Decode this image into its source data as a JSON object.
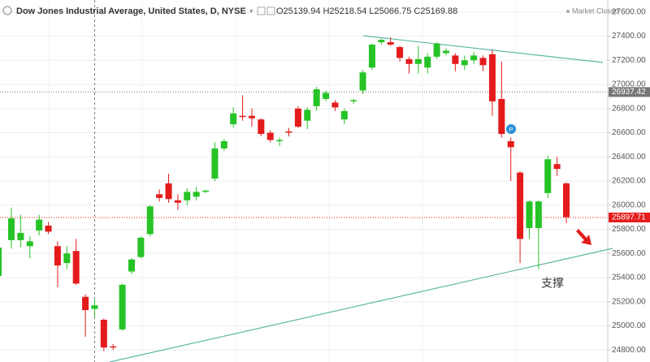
{
  "chart_data": {
    "type": "candlestick",
    "title": "Dow Jones Industrial Average, United States, D, NYSE",
    "ohlc_legend": "O25139.94 H25218.54 L25066.75 C25169.88",
    "status": "Market Closed",
    "annotation": "支撑",
    "up_color": "#26c326",
    "down_color": "#e41b1b",
    "open": [
      25710,
      25710,
      25660,
      25790,
      25830,
      25660,
      25520,
      25620,
      25240,
      25139.94,
      25050,
      24830,
      24970,
      25450,
      25570,
      25760,
      26090,
      26180,
      26040,
      26040,
      26070,
      26110,
      26220,
      26470,
      26670,
      26740,
      26740,
      26710,
      26600,
      26530,
      26610,
      26800,
      26700,
      26820,
      26880,
      26850,
      26710,
      26860,
      26950,
      27140,
      27350,
      27350,
      27310,
      27210,
      27170,
      27140,
      27230,
      27260,
      27240,
      27160,
      27200,
      27220,
      27250,
      26880,
      26530,
      26270,
      25810,
      25810,
      26100,
      26340,
      26180
    ],
    "high": [
      25980,
      25920,
      25740,
      25920,
      25860,
      25700,
      25660,
      25720,
      25260,
      25218.54,
      25060,
      24850,
      25350,
      25560,
      25740,
      26000,
      26130,
      26260,
      26090,
      26140,
      26150,
      26130,
      26520,
      26550,
      26810,
      26910,
      26800,
      26720,
      26620,
      26560,
      26640,
      26820,
      26810,
      26980,
      26950,
      26870,
      26800,
      26880,
      27120,
      27340,
      27380,
      27390,
      27320,
      27230,
      27320,
      27260,
      27350,
      27300,
      27260,
      27240,
      27270,
      27240,
      27290,
      27190,
      26560,
      26280,
      26040,
      26040,
      26410,
      26400,
      26190
    ],
    "low": [
      25640,
      25650,
      25560,
      25750,
      25760,
      25320,
      25470,
      25340,
      24910,
      25066.75,
      24790,
      24800,
      24960,
      25430,
      25560,
      25740,
      26030,
      26020,
      25960,
      26000,
      26040,
      26100,
      26200,
      26450,
      26640,
      26700,
      26650,
      26570,
      26520,
      26490,
      26570,
      26640,
      26630,
      26780,
      26860,
      26780,
      26670,
      26840,
      26920,
      27120,
      27330,
      27320,
      27190,
      27090,
      27090,
      27090,
      27210,
      27240,
      27110,
      27120,
      27170,
      27110,
      26740,
      26560,
      26200,
      25520,
      25720,
      25470,
      26060,
      26240,
      25850
    ],
    "close": [
      25890,
      25770,
      25700,
      25880,
      25780,
      25500,
      25600,
      25350,
      25130,
      25169.88,
      24820,
      24820,
      25340,
      25550,
      25730,
      25990,
      26060,
      26050,
      26020,
      26110,
      26110,
      26120,
      26470,
      26530,
      26760,
      26730,
      26720,
      26590,
      26540,
      26540,
      26600,
      26650,
      26790,
      26960,
      26930,
      26810,
      26780,
      26870,
      27100,
      27330,
      27370,
      27330,
      27220,
      27170,
      27210,
      27230,
      27340,
      27280,
      27170,
      27200,
      27240,
      27160,
      26860,
      26590,
      26480,
      25720,
      26030,
      26030,
      26380,
      26300,
      25900
    ],
    "price_lines": [
      {
        "value": 26937.42,
        "color": "#777777"
      },
      {
        "value": 25897.71,
        "color": "#e41b1b"
      }
    ],
    "ylim": [
      24700,
      27700
    ],
    "yticks": [
      {
        "value": 24800,
        "label": "24800.00"
      },
      {
        "value": 25000,
        "label": "25000.00"
      },
      {
        "value": 25200,
        "label": "25200.00"
      },
      {
        "value": 25400,
        "label": "25400.00"
      },
      {
        "value": 25600,
        "label": "25600.00"
      },
      {
        "value": 25800,
        "label": "25800.00"
      },
      {
        "value": 26000,
        "label": "26000.00"
      },
      {
        "value": 26200,
        "label": "26200.00"
      },
      {
        "value": 26400,
        "label": "26400.00"
      },
      {
        "value": 26600,
        "label": "26600.00"
      },
      {
        "value": 26800,
        "label": "26800.00"
      },
      {
        "value": 27000,
        "label": "27000.00"
      },
      {
        "value": 27200,
        "label": "27200.00"
      },
      {
        "value": 27400,
        "label": "27400.00"
      },
      {
        "value": 27600,
        "label": "27600.00"
      }
    ],
    "grid": true
  }
}
